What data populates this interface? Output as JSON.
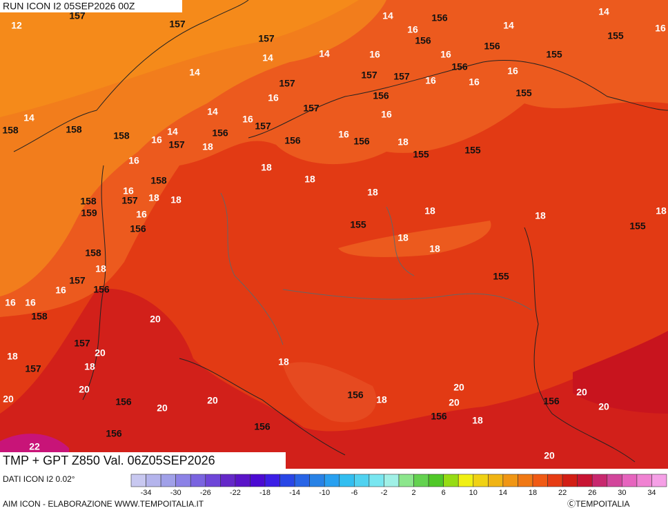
{
  "header": {
    "run": "RUN ICON I2 05SEP2026 00Z"
  },
  "map": {
    "temperature_labels": [
      12,
      14,
      14,
      14,
      14,
      14,
      14,
      14,
      14,
      14,
      16,
      16,
      16,
      16,
      16,
      16,
      16,
      16,
      16,
      16,
      16,
      16,
      16,
      16,
      16,
      16,
      16,
      16,
      18,
      18,
      18,
      18,
      18,
      18,
      18,
      18,
      18,
      18,
      18,
      18,
      18,
      18,
      18,
      18,
      18,
      18,
      20,
      20,
      20,
      20,
      20,
      20,
      20,
      20,
      20,
      20,
      20,
      22
    ],
    "geopotential_labels": [
      157,
      157,
      157,
      157,
      157,
      157,
      157,
      157,
      157,
      157,
      157,
      157,
      157,
      156,
      156,
      156,
      156,
      156,
      156,
      156,
      156,
      156,
      156,
      156,
      156,
      156,
      156,
      156,
      156,
      155,
      155,
      155,
      155,
      155,
      155,
      155,
      155,
      158,
      158,
      158,
      158,
      158,
      158,
      158,
      159
    ]
  },
  "footer": {
    "title": "TMP + GPT Z850 Val. 06Z05SEP2026",
    "source": "DATI ICON I2 0.02°",
    "credit": "AIM ICON - ELABORAZIONE WWW.TEMPOITALIA.IT",
    "copyright": "ⒸTEMPOITALIA"
  },
  "colorbar": {
    "colors": [
      "#c8c8f0",
      "#b4b4ec",
      "#a0a0e8",
      "#8c82e6",
      "#7a64e0",
      "#6e46d8",
      "#6428c8",
      "#5a14c8",
      "#4b0ad2",
      "#3c1ee6",
      "#2846e6",
      "#2864e6",
      "#2882e6",
      "#28a0f0",
      "#32bef0",
      "#50d2f0",
      "#78e6f0",
      "#a0f0e6",
      "#8ce68c",
      "#64d250",
      "#50c828",
      "#96dc14",
      "#f0f014",
      "#f0d214",
      "#f0b414",
      "#f09614",
      "#f07814",
      "#f05a14",
      "#e63c14",
      "#d21e14",
      "#c81432",
      "#c8286e",
      "#d2469b",
      "#e664be",
      "#f082d2",
      "#f5a0e6"
    ],
    "ticks": [
      -34,
      -30,
      -26,
      -22,
      -18,
      -14,
      -10,
      -6,
      -2,
      2,
      6,
      10,
      14,
      18,
      22,
      26,
      30,
      34
    ]
  }
}
